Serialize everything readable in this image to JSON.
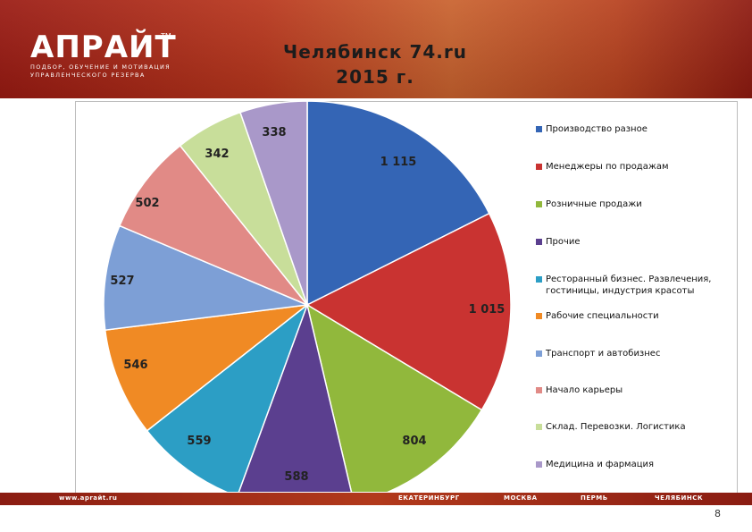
{
  "logo": {
    "brand": "АПРАЙТ",
    "tm": "TM",
    "tagline_1": "ПОДБОР, ОБУЧЕНИЕ И МОТИВАЦИЯ",
    "tagline_2": "УПРАВЛЕНЧЕСКОГО РЕЗЕРВА"
  },
  "title": {
    "line1": "Челябинск 74.ru",
    "line2": "2015 г."
  },
  "chart_data": {
    "type": "pie",
    "title": "Челябинск 74.ru 2015 г.",
    "categories": [
      "Производство разное",
      "Менеджеры по продажам",
      "Розничные продажи",
      "Прочие",
      "Ресторанный бизнес. Развлечения, гостиницы, индустрия красоты",
      "Рабочие специальности",
      "Транспорт и автобизнес",
      "Начало карьеры",
      "Склад. Перевозки. Логистика",
      "Медицина и фармация"
    ],
    "values": [
      1115,
      1015,
      804,
      588,
      559,
      546,
      527,
      502,
      342,
      338
    ],
    "data_labels": [
      "1 115",
      "1 015",
      "804",
      "588",
      "559",
      "546",
      "527",
      "502",
      "342",
      "338"
    ],
    "colors": [
      "#3465b5",
      "#c93331",
      "#91b83c",
      "#5b3f8f",
      "#2c9ec5",
      "#f08a24",
      "#7d9fd6",
      "#e18a86",
      "#c8de9a",
      "#a998c9"
    ],
    "legend_position": "right"
  },
  "legend": {
    "items": [
      "Производство разное",
      "Менеджеры по продажам",
      "Розничные продажи",
      "Прочие",
      "Ресторанный бизнес. Развлечения, гостиницы, индустрия красоты",
      "Рабочие специальности",
      "Транспорт и автобизнес",
      "Начало карьеры",
      "Склад. Перевозки. Логистика",
      "Медицина и фармация"
    ]
  },
  "footer": {
    "website": "www.apraйt.ru",
    "city1": "ЕКАТЕРИНБУРГ",
    "city2": "МОСКВА",
    "city3": "ПЕРМЬ",
    "city4": "ЧЕЛЯБИНСК"
  },
  "page_number": "8"
}
